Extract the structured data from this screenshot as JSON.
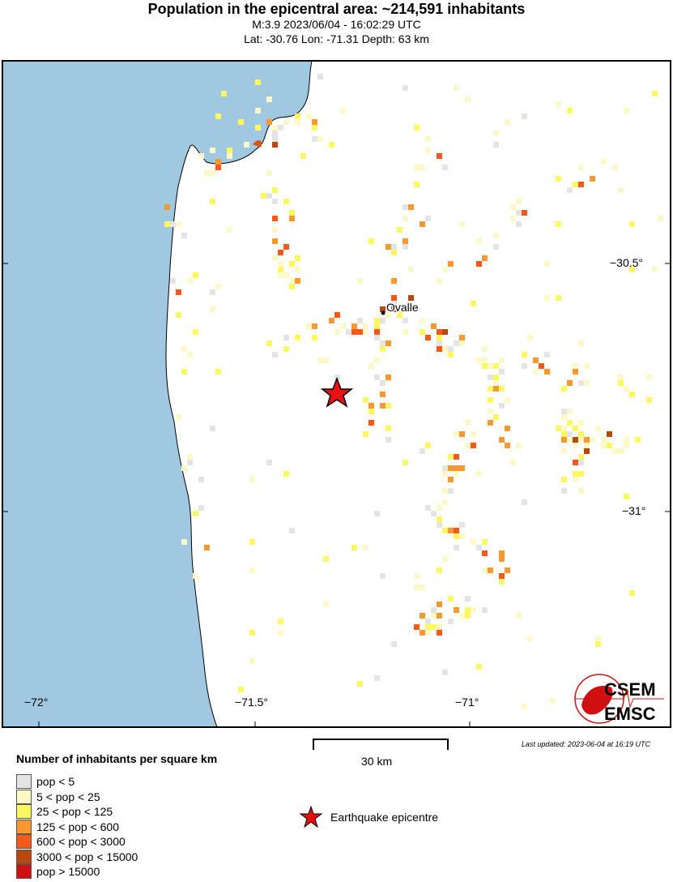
{
  "header": {
    "title": "Population in the epicentral area: ~214,591 inhabitants",
    "line1": "M:3.9 2023/06/04 - 16:02:29 UTC",
    "line2": "Lat: -30.76 Lon: -71.31 Depth: 63 km"
  },
  "map": {
    "ocean_color": "#a0c8e0",
    "land_color": "#ffffff",
    "city": "Ovalle",
    "epicenter": {
      "lat": -30.76,
      "lon": -71.31,
      "color": "#e81010"
    },
    "lon_ticks": [
      "−72°",
      "−71.5°",
      "−71°"
    ],
    "lat_ticks": [
      "−30.5°",
      "−31°"
    ]
  },
  "scale": {
    "label": "30 km"
  },
  "updated": "Last updated: 2023-06-04 at 16:19 UTC",
  "logo": {
    "top": "CSEM",
    "bottom": "EMSC"
  },
  "legend": {
    "title": "Number of inhabitants per square km",
    "items": [
      {
        "label": "pop < 5",
        "color": "#e4e4e4"
      },
      {
        "label": "5 < pop < 25",
        "color": "#fcf8c8"
      },
      {
        "label": "25 < pop < 125",
        "color": "#fcf860"
      },
      {
        "label": "125 < pop < 600",
        "color": "#f89830"
      },
      {
        "label": "600 < pop < 3000",
        "color": "#f85818"
      },
      {
        "label": "3000 < pop < 15000",
        "color": "#b84810"
      },
      {
        "label": "pop > 15000",
        "color": "#d01010"
      }
    ],
    "epicentre_label": "Earthquake epicentre"
  }
}
